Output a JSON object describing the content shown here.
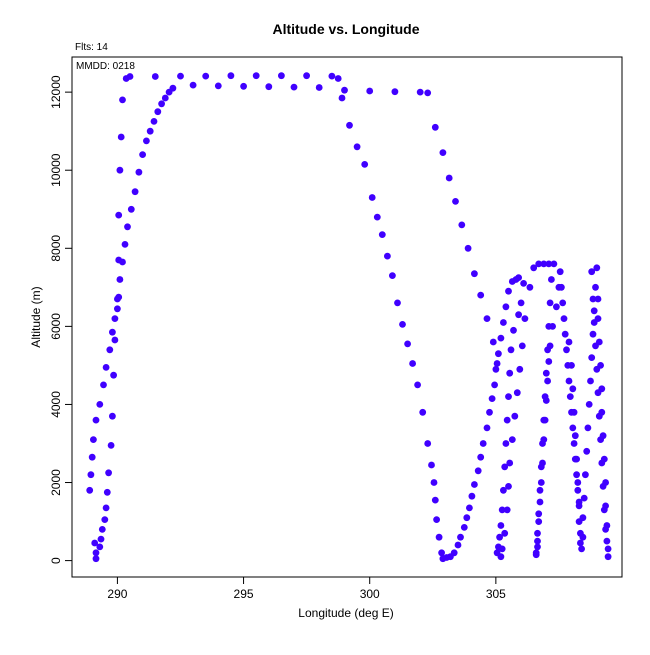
{
  "chart_data": {
    "type": "scatter",
    "title": "Altitude vs. Longitude",
    "subtitle": "Flts: 14",
    "annotation": "MMDD: 0218",
    "xlabel": "Longitude (deg E)",
    "ylabel": "Altitude (m)",
    "xlim": [
      288.2,
      310.0
    ],
    "ylim": [
      -420,
      12900
    ],
    "xticks": [
      290,
      295,
      300,
      305
    ],
    "yticks": [
      0,
      2000,
      4000,
      6000,
      8000,
      10000,
      12000
    ],
    "grid": false,
    "marker_color": "#4000ff",
    "series": [
      {
        "values": [
          [
            289.15,
            50
          ],
          [
            289.15,
            200
          ],
          [
            289.1,
            450
          ],
          [
            289.3,
            350
          ],
          [
            289.35,
            550
          ],
          [
            289.4,
            800
          ],
          [
            289.5,
            1050
          ],
          [
            289.55,
            1350
          ],
          [
            289.6,
            1750
          ],
          [
            289.65,
            2250
          ],
          [
            289.75,
            2950
          ],
          [
            289.8,
            3700
          ],
          [
            289.85,
            4750
          ],
          [
            289.9,
            5650
          ],
          [
            290.0,
            6450
          ],
          [
            290.05,
            6750
          ],
          [
            290.1,
            7200
          ],
          [
            290.2,
            7650
          ],
          [
            290.3,
            8100
          ],
          [
            290.4,
            8550
          ],
          [
            290.55,
            9000
          ],
          [
            290.7,
            9450
          ],
          [
            290.85,
            9950
          ],
          [
            291.0,
            10400
          ],
          [
            291.15,
            10750
          ],
          [
            291.3,
            11000
          ],
          [
            291.45,
            11250
          ],
          [
            291.6,
            11500
          ],
          [
            291.75,
            11700
          ],
          [
            291.9,
            11850
          ],
          [
            292.05,
            12000
          ],
          [
            292.2,
            12100
          ],
          [
            288.9,
            1800
          ],
          [
            288.95,
            2200
          ],
          [
            289.0,
            2650
          ],
          [
            289.05,
            3100
          ],
          [
            289.15,
            3600
          ],
          [
            289.3,
            4000
          ],
          [
            289.45,
            4500
          ],
          [
            289.55,
            4950
          ],
          [
            289.7,
            5400
          ],
          [
            289.8,
            5850
          ],
          [
            289.9,
            6200
          ],
          [
            290.0,
            6700
          ],
          [
            290.05,
            7700
          ],
          [
            290.05,
            8850
          ],
          [
            290.1,
            10000
          ],
          [
            290.15,
            10850
          ],
          [
            290.2,
            11800
          ],
          [
            290.35,
            12350
          ],
          [
            293.0,
            12180
          ],
          [
            294.0,
            12160
          ],
          [
            295.0,
            12150
          ],
          [
            296.0,
            12140
          ],
          [
            297.0,
            12130
          ],
          [
            298.0,
            12120
          ],
          [
            299.0,
            12050
          ],
          [
            300.0,
            12030
          ],
          [
            301.0,
            12010
          ],
          [
            302.0,
            12000
          ],
          [
            302.3,
            11980
          ],
          [
            290.5,
            12400
          ],
          [
            291.5,
            12400
          ],
          [
            292.5,
            12410
          ],
          [
            293.5,
            12410
          ],
          [
            294.5,
            12420
          ],
          [
            295.5,
            12420
          ],
          [
            296.5,
            12420
          ],
          [
            297.5,
            12420
          ],
          [
            298.5,
            12410
          ],
          [
            298.75,
            12350
          ],
          [
            298.9,
            11850
          ],
          [
            299.2,
            11150
          ],
          [
            299.5,
            10600
          ],
          [
            299.8,
            10150
          ],
          [
            300.1,
            9300
          ],
          [
            300.3,
            8800
          ],
          [
            300.5,
            8350
          ],
          [
            300.7,
            7800
          ],
          [
            300.9,
            7300
          ],
          [
            301.1,
            6600
          ],
          [
            301.3,
            6050
          ],
          [
            301.5,
            5550
          ],
          [
            301.7,
            5050
          ],
          [
            301.9,
            4500
          ],
          [
            302.1,
            3800
          ],
          [
            302.3,
            3000
          ],
          [
            302.45,
            2450
          ],
          [
            302.55,
            2000
          ],
          [
            302.6,
            1550
          ],
          [
            302.65,
            1050
          ],
          [
            302.75,
            600
          ],
          [
            302.85,
            200
          ],
          [
            302.9,
            50
          ],
          [
            303.05,
            80
          ],
          [
            303.2,
            100
          ],
          [
            303.35,
            200
          ],
          [
            302.6,
            11100
          ],
          [
            302.9,
            10450
          ],
          [
            303.15,
            9800
          ],
          [
            303.4,
            9200
          ],
          [
            303.65,
            8600
          ],
          [
            303.9,
            8000
          ],
          [
            304.15,
            7350
          ],
          [
            304.4,
            6800
          ],
          [
            304.65,
            6200
          ],
          [
            304.9,
            5600
          ],
          [
            305.05,
            5050
          ],
          [
            303.5,
            400
          ],
          [
            303.6,
            600
          ],
          [
            303.75,
            850
          ],
          [
            303.85,
            1100
          ],
          [
            303.95,
            1350
          ],
          [
            304.05,
            1650
          ],
          [
            304.15,
            1950
          ],
          [
            304.3,
            2300
          ],
          [
            304.4,
            2650
          ],
          [
            304.5,
            3000
          ],
          [
            304.65,
            3400
          ],
          [
            304.75,
            3800
          ],
          [
            304.85,
            4150
          ],
          [
            304.95,
            4500
          ],
          [
            305.0,
            4900
          ],
          [
            305.1,
            5300
          ],
          [
            305.2,
            5700
          ],
          [
            305.3,
            6100
          ],
          [
            305.4,
            6500
          ],
          [
            305.5,
            6900
          ],
          [
            305.65,
            7150
          ],
          [
            305.8,
            7200
          ],
          [
            305.9,
            7250
          ],
          [
            305.05,
            200
          ],
          [
            305.1,
            350
          ],
          [
            305.15,
            600
          ],
          [
            305.2,
            900
          ],
          [
            305.25,
            1300
          ],
          [
            305.3,
            1800
          ],
          [
            305.35,
            2400
          ],
          [
            305.4,
            3000
          ],
          [
            305.45,
            3600
          ],
          [
            305.5,
            4200
          ],
          [
            305.55,
            4800
          ],
          [
            305.6,
            5400
          ],
          [
            305.7,
            5900
          ],
          [
            305.9,
            6300
          ],
          [
            306.0,
            6600
          ],
          [
            306.1,
            7100
          ],
          [
            305.2,
            100
          ],
          [
            305.25,
            300
          ],
          [
            305.35,
            700
          ],
          [
            305.45,
            1300
          ],
          [
            305.5,
            1900
          ],
          [
            305.55,
            2500
          ],
          [
            305.65,
            3100
          ],
          [
            305.75,
            3700
          ],
          [
            305.85,
            4300
          ],
          [
            305.95,
            4900
          ],
          [
            306.05,
            5500
          ],
          [
            306.15,
            6200
          ],
          [
            306.35,
            7000
          ],
          [
            306.5,
            7500
          ],
          [
            306.7,
            7600
          ],
          [
            306.9,
            7600
          ],
          [
            307.1,
            7600
          ],
          [
            307.3,
            7600
          ],
          [
            306.6,
            150
          ],
          [
            306.65,
            350
          ],
          [
            306.65,
            700
          ],
          [
            306.7,
            1200
          ],
          [
            306.75,
            1800
          ],
          [
            306.8,
            2400
          ],
          [
            306.85,
            3000
          ],
          [
            306.9,
            3600
          ],
          [
            306.95,
            4200
          ],
          [
            307.0,
            4800
          ],
          [
            307.05,
            5400
          ],
          [
            307.1,
            6000
          ],
          [
            307.15,
            6600
          ],
          [
            307.2,
            7200
          ],
          [
            306.6,
            200
          ],
          [
            306.65,
            500
          ],
          [
            306.7,
            1000
          ],
          [
            306.75,
            1500
          ],
          [
            306.8,
            2000
          ],
          [
            306.85,
            2500
          ],
          [
            306.9,
            3100
          ],
          [
            306.95,
            3600
          ],
          [
            307.0,
            4100
          ],
          [
            307.05,
            4600
          ],
          [
            307.1,
            5100
          ],
          [
            307.15,
            5500
          ],
          [
            307.25,
            6000
          ],
          [
            307.4,
            6500
          ],
          [
            307.5,
            7000
          ],
          [
            307.55,
            7400
          ],
          [
            307.6,
            7000
          ],
          [
            307.65,
            6600
          ],
          [
            307.7,
            6200
          ],
          [
            307.75,
            5800
          ],
          [
            307.8,
            5400
          ],
          [
            307.85,
            5000
          ],
          [
            307.9,
            4600
          ],
          [
            307.95,
            4200
          ],
          [
            308.0,
            3800
          ],
          [
            308.05,
            3400
          ],
          [
            308.1,
            3000
          ],
          [
            308.15,
            2600
          ],
          [
            308.2,
            2200
          ],
          [
            308.25,
            1800
          ],
          [
            308.3,
            1400
          ],
          [
            308.3,
            1000
          ],
          [
            308.35,
            700
          ],
          [
            308.35,
            450
          ],
          [
            308.4,
            300
          ],
          [
            307.9,
            5600
          ],
          [
            308.0,
            5000
          ],
          [
            308.05,
            4400
          ],
          [
            308.1,
            3800
          ],
          [
            308.15,
            3200
          ],
          [
            308.2,
            2600
          ],
          [
            308.25,
            2000
          ],
          [
            308.3,
            1500
          ],
          [
            308.45,
            600
          ],
          [
            308.45,
            1100
          ],
          [
            308.5,
            1600
          ],
          [
            308.55,
            2200
          ],
          [
            308.6,
            2800
          ],
          [
            308.65,
            3400
          ],
          [
            308.7,
            4000
          ],
          [
            308.75,
            4600
          ],
          [
            308.8,
            5200
          ],
          [
            308.85,
            5800
          ],
          [
            308.9,
            6400
          ],
          [
            308.95,
            7000
          ],
          [
            309.0,
            7500
          ],
          [
            309.05,
            6700
          ],
          [
            309.05,
            6200
          ],
          [
            309.1,
            5600
          ],
          [
            309.15,
            5000
          ],
          [
            309.2,
            4400
          ],
          [
            309.2,
            3800
          ],
          [
            309.25,
            3200
          ],
          [
            309.3,
            2600
          ],
          [
            309.35,
            2000
          ],
          [
            309.35,
            1400
          ],
          [
            309.4,
            900
          ],
          [
            309.4,
            500
          ],
          [
            309.45,
            300
          ],
          [
            309.45,
            100
          ],
          [
            308.8,
            7400
          ],
          [
            308.85,
            6700
          ],
          [
            308.9,
            6100
          ],
          [
            308.95,
            5500
          ],
          [
            309.0,
            4900
          ],
          [
            309.05,
            4300
          ],
          [
            309.1,
            3700
          ],
          [
            309.15,
            3100
          ],
          [
            309.2,
            2500
          ],
          [
            309.25,
            1900
          ],
          [
            309.3,
            1300
          ],
          [
            309.35,
            800
          ]
        ]
      }
    ]
  }
}
